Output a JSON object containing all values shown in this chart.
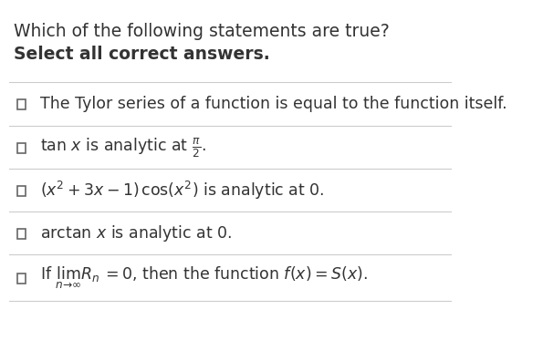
{
  "title": "Which of the following statements are true?",
  "subtitle": "Select all correct answers.",
  "background_color": "#ffffff",
  "text_color": "#333333",
  "line_color": "#cccccc",
  "title_fontsize": 13.5,
  "subtitle_fontsize": 13.5,
  "item_fontsize": 12.5,
  "items": [
    "The Tylor series of a function is equal to the function itself.",
    "tan $x$ is analytic at $\\frac{\\pi}{2}$.",
    "$(x^2 + 3x - 1)\\,\\cos(x^2)$ is analytic at 0.",
    "arctan $x$ is analytic at 0.",
    "If $\\lim_{n \\to \\infty} R_n = 0$, then the function $f(x) = S(x)$."
  ]
}
